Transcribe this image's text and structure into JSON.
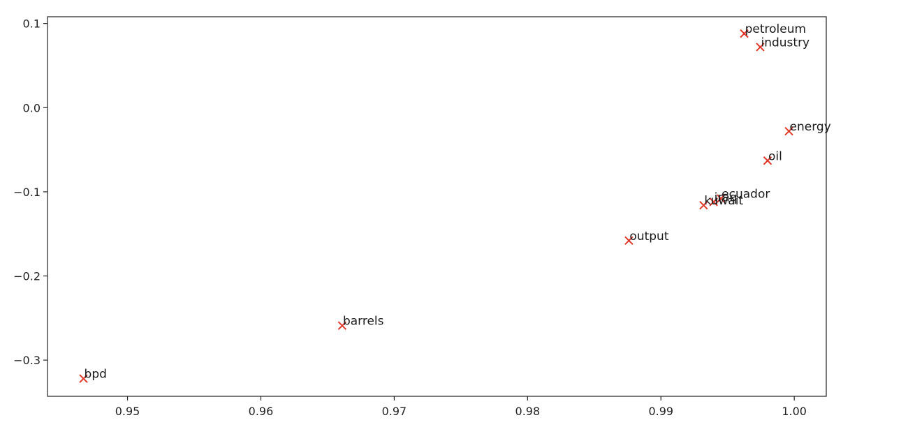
{
  "chart_data": {
    "type": "scatter",
    "marker": "x",
    "marker_color": "#e0382b",
    "xlim": [
      0.944,
      1.0024
    ],
    "ylim": [
      -0.343,
      0.108
    ],
    "x_ticks": [
      0.95,
      0.96,
      0.97,
      0.98,
      0.99,
      1.0
    ],
    "x_tick_labels": [
      "0.95",
      "0.96",
      "0.97",
      "0.98",
      "0.99",
      "1.00"
    ],
    "y_ticks": [
      0.1,
      0.0,
      -0.1,
      -0.2,
      -0.3
    ],
    "y_tick_labels": [
      "0.1",
      "0.0",
      "−0.1",
      "−0.2",
      "−0.3"
    ],
    "grid": false,
    "points": [
      {
        "label": "petroleum",
        "x": 0.99625,
        "y": 0.088
      },
      {
        "label": "industry",
        "x": 0.99745,
        "y": 0.072
      },
      {
        "label": "energy",
        "x": 0.9996,
        "y": -0.028
      },
      {
        "label": "oil",
        "x": 0.998,
        "y": -0.063
      },
      {
        "label": "ecuador",
        "x": 0.9945,
        "y": -0.108
      },
      {
        "label": "iraq",
        "x": 0.99395,
        "y": -0.112
      },
      {
        "label": "kuwait",
        "x": 0.9932,
        "y": -0.116
      },
      {
        "label": "output",
        "x": 0.9876,
        "y": -0.158
      },
      {
        "label": "barrels",
        "x": 0.9661,
        "y": -0.259
      },
      {
        "label": "bpd",
        "x": 0.9467,
        "y": -0.322
      }
    ]
  }
}
